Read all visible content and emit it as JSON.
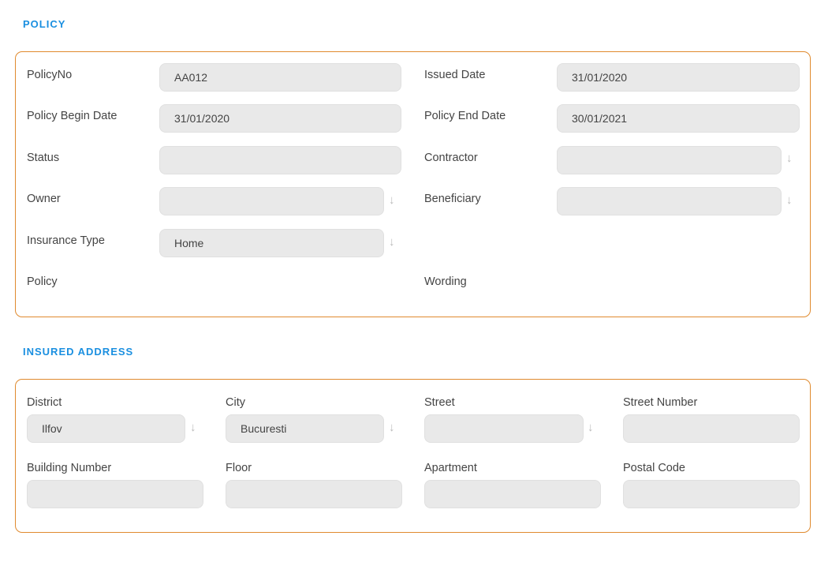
{
  "policy": {
    "title": "POLICY",
    "policy_no": {
      "label": "PolicyNo",
      "value": "AA012"
    },
    "issued_date": {
      "label": "Issued Date",
      "value": "31/01/2020"
    },
    "begin_date": {
      "label": "Policy Begin Date",
      "value": "31/01/2020"
    },
    "end_date": {
      "label": "Policy End Date",
      "value": "30/01/2021"
    },
    "status": {
      "label": "Status",
      "value": ""
    },
    "contractor": {
      "label": "Contractor",
      "value": ""
    },
    "owner": {
      "label": "Owner",
      "value": ""
    },
    "beneficiary": {
      "label": "Beneficiary",
      "value": ""
    },
    "insurance_type": {
      "label": "Insurance Type",
      "value": "Home"
    },
    "policy_label": "Policy",
    "wording_label": "Wording"
  },
  "address": {
    "title": "INSURED ADDRESS",
    "district": {
      "label": "District",
      "value": "Ilfov"
    },
    "city": {
      "label": "City",
      "value": "Bucuresti"
    },
    "street": {
      "label": "Street",
      "value": ""
    },
    "street_number": {
      "label": "Street Number",
      "value": ""
    },
    "building_number": {
      "label": "Building Number",
      "value": ""
    },
    "floor": {
      "label": "Floor",
      "value": ""
    },
    "apartment": {
      "label": "Apartment",
      "value": ""
    },
    "postal_code": {
      "label": "Postal Code",
      "value": ""
    }
  },
  "icons": {
    "dropdown": "arrow-down-icon"
  },
  "colors": {
    "accent": "#1a8fe0",
    "panel_border": "#e08a2e"
  }
}
